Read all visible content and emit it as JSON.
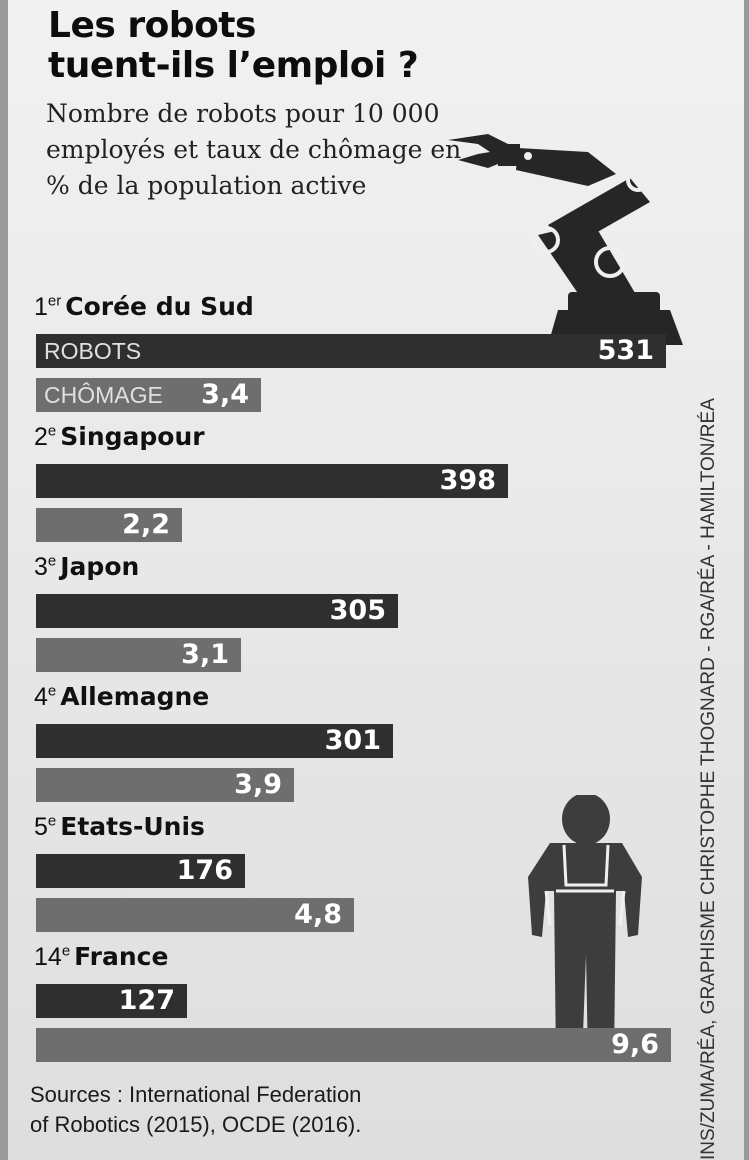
{
  "title_line1": "Les robots",
  "title_line2": "tuent-ils l’emploi ?",
  "subtitle": "Nombre de robots pour 10 000 employés et taux de chômage en % de la population active",
  "labels": {
    "robots": "ROBOTS",
    "unemployment": "CHÔMAGE"
  },
  "sources_line1": "Sources : International Federation",
  "sources_line2": "of Robotics (2015), OCDE (2016).",
  "credit": "INS/ZUMA/RÉA, GRAPHISME CHRISTOPHE THOGNARD - RGA/RÉA - HAMILTON/RÉA",
  "colors": {
    "robots_bar": "#2f2f2f",
    "unemployment_bar": "#6e6e6e"
  },
  "icons": [
    "robot-arm-icon",
    "worker-icon"
  ],
  "chart_data": {
    "type": "bar",
    "orientation": "horizontal",
    "title": "Les robots tuent-ils l’emploi ?",
    "subtitle": "Nombre de robots pour 10 000 employés et taux de chômage en % de la population active",
    "categories": [
      "Corée du Sud",
      "Singapour",
      "Japon",
      "Allemagne",
      "Etats-Unis",
      "France"
    ],
    "ranks": [
      "1",
      "2",
      "3",
      "4",
      "5",
      "14"
    ],
    "rank_suffixes": [
      "er",
      "e",
      "e",
      "e",
      "e",
      "e"
    ],
    "series": [
      {
        "name": "ROBOTS",
        "values": [
          531,
          398,
          305,
          301,
          176,
          127
        ],
        "labels": [
          "531",
          "398",
          "305",
          "301",
          "176",
          "127"
        ]
      },
      {
        "name": "CHÔMAGE",
        "values": [
          3.4,
          2.2,
          3.1,
          3.9,
          4.8,
          9.6
        ],
        "labels": [
          "3,4",
          "2,2",
          "3,1",
          "3,9",
          "4,8",
          "9,6"
        ]
      }
    ],
    "grid": false,
    "legend": "inline in first bars"
  }
}
